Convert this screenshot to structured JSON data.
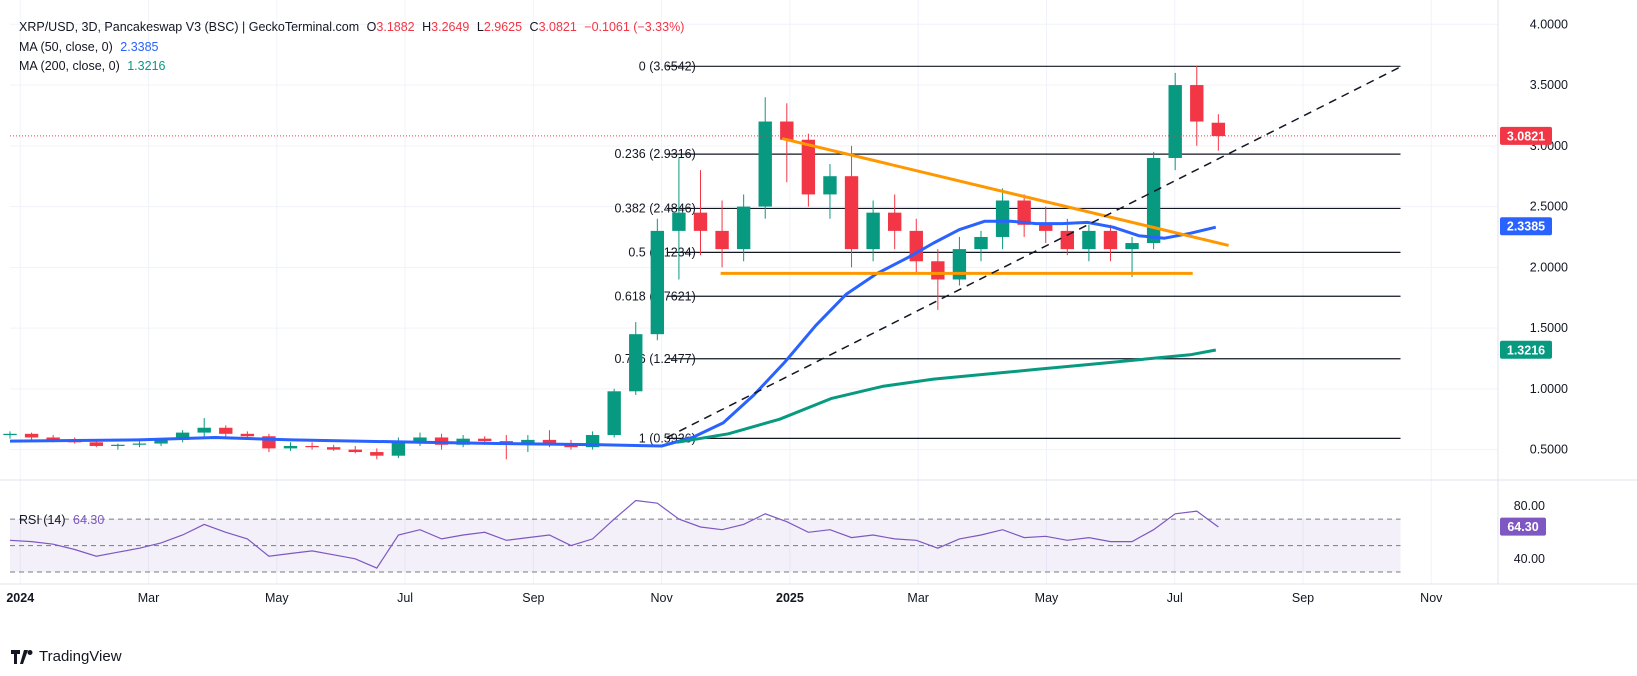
{
  "header": {
    "symbol": "XRP/USD, 3D, Pancakeswap V3 (BSC) | GeckoTerminal.com",
    "o_label": "O",
    "o_value": "3.1882",
    "h_label": "H",
    "h_value": "3.2649",
    "l_label": "L",
    "l_value": "2.9625",
    "c_label": "C",
    "c_value": "3.0821",
    "change": "−0.1061 (−3.33%)"
  },
  "indicators": {
    "ma50_label": "MA (50, close, 0)",
    "ma50_value": "2.3385",
    "ma200_label": "MA (200, close, 0)",
    "ma200_value": "1.3216",
    "rsi_label": "RSI (14)",
    "rsi_value": "64.30"
  },
  "colors": {
    "up": "#089981",
    "down": "#f23645",
    "ma50": "#2962ff",
    "ma200": "#089981",
    "rsi": "#7e57c2",
    "trend": "#ff9800",
    "fib": "#131722"
  },
  "brand": {
    "name": "TradingView"
  },
  "chart_data": {
    "type": "candlestick",
    "title": "XRP/USD, 3D, Pancakeswap V3 (BSC) | GeckoTerminal.com",
    "y_ticks": [
      "4.0000",
      "3.5000",
      "3.0000",
      "2.5000",
      "2.0000",
      "1.5000",
      "1.0000",
      "0.5000"
    ],
    "y_tick_values": [
      4.0,
      3.5,
      3.0,
      2.5,
      2.0,
      1.5,
      1.0,
      0.5
    ],
    "ylim": [
      0.25,
      4.2
    ],
    "x_ticks": [
      "2024",
      "Mar",
      "May",
      "Jul",
      "Sep",
      "Nov",
      "2025",
      "Mar",
      "May",
      "Jul",
      "Sep",
      "Nov"
    ],
    "x_tick_bold": [
      true,
      false,
      false,
      false,
      false,
      false,
      true,
      false,
      false,
      false,
      false,
      false
    ],
    "x_tick_pos": [
      0.7,
      3.2,
      5.7,
      8.2,
      10.7,
      13.2,
      15.7,
      18.2,
      20.7,
      23.2,
      25.7,
      28.2
    ],
    "x_range": [
      0.5,
      29.5
    ],
    "last_price": 3.0821,
    "last_price_label": "3.0821",
    "ma50_last": 2.3385,
    "ma50_last_label": "2.3385",
    "ma200_last": 1.3216,
    "ma200_last_label": "1.3216",
    "fib_levels": [
      {
        "ratio": "0",
        "price": 3.6542,
        "label": "0 (3.6542)"
      },
      {
        "ratio": "0.236",
        "price": 2.9316,
        "label": "0.236 (2.9316)"
      },
      {
        "ratio": "0.382",
        "price": 2.4846,
        "label": "0.382 (2.4846)"
      },
      {
        "ratio": "0.5",
        "price": 2.1234,
        "label": "0.5 (2.1234)"
      },
      {
        "ratio": "0.618",
        "price": 1.7621,
        "label": "0.618 (1.7621)"
      },
      {
        "ratio": "0.786",
        "price": 1.2477,
        "label": "0.786 (1.2477)"
      },
      {
        "ratio": "1",
        "price": 0.5926,
        "label": "1 (0.5926)"
      }
    ],
    "fib_x_range": [
      13.3,
      27.6
    ],
    "trendlines": [
      {
        "name": "descending-resistance",
        "style": "orange",
        "from": [
          15.55,
          3.06
        ],
        "to": [
          24.25,
          2.18
        ]
      },
      {
        "name": "horizontal-support",
        "style": "orange",
        "from": [
          14.35,
          1.95
        ],
        "to": [
          23.55,
          1.95
        ]
      },
      {
        "name": "ascending-trend",
        "style": "dashed",
        "from": [
          13.3,
          0.6
        ],
        "to": [
          27.6,
          3.65
        ]
      }
    ],
    "series": [
      {
        "name": "MA (50, close, 0)",
        "points": [
          [
            0.5,
            0.57
          ],
          [
            3,
            0.58
          ],
          [
            4.5,
            0.6
          ],
          [
            6,
            0.58
          ],
          [
            8.5,
            0.56
          ],
          [
            10,
            0.55
          ],
          [
            12,
            0.54
          ],
          [
            13.2,
            0.53
          ],
          [
            13.8,
            0.6
          ],
          [
            14.4,
            0.72
          ],
          [
            15,
            0.95
          ],
          [
            15.6,
            1.22
          ],
          [
            16.2,
            1.52
          ],
          [
            16.8,
            1.78
          ],
          [
            17.4,
            1.95
          ],
          [
            18,
            2.08
          ],
          [
            18.5,
            2.2
          ],
          [
            19,
            2.31
          ],
          [
            19.5,
            2.38
          ],
          [
            20,
            2.38
          ],
          [
            20.5,
            2.36
          ],
          [
            21,
            2.36
          ],
          [
            21.5,
            2.37
          ],
          [
            22,
            2.33
          ],
          [
            22.5,
            2.26
          ],
          [
            23,
            2.24
          ],
          [
            23.5,
            2.28
          ],
          [
            24,
            2.33
          ]
        ]
      },
      {
        "name": "MA (200, close, 0)",
        "points": [
          [
            13.5,
            0.56
          ],
          [
            14.5,
            0.63
          ],
          [
            15.5,
            0.75
          ],
          [
            16.5,
            0.92
          ],
          [
            17.5,
            1.02
          ],
          [
            18.5,
            1.08
          ],
          [
            19.5,
            1.12
          ],
          [
            20.5,
            1.16
          ],
          [
            21.5,
            1.2
          ],
          [
            22.5,
            1.24
          ],
          [
            23.5,
            1.28
          ],
          [
            24,
            1.32
          ]
        ]
      }
    ],
    "candles": [
      {
        "o": 0.62,
        "h": 0.65,
        "l": 0.59,
        "c": 0.63
      },
      {
        "o": 0.63,
        "h": 0.64,
        "l": 0.58,
        "c": 0.6
      },
      {
        "o": 0.6,
        "h": 0.62,
        "l": 0.56,
        "c": 0.58
      },
      {
        "o": 0.58,
        "h": 0.6,
        "l": 0.55,
        "c": 0.56
      },
      {
        "o": 0.56,
        "h": 0.58,
        "l": 0.52,
        "c": 0.53
      },
      {
        "o": 0.53,
        "h": 0.55,
        "l": 0.5,
        "c": 0.54
      },
      {
        "o": 0.54,
        "h": 0.57,
        "l": 0.52,
        "c": 0.55
      },
      {
        "o": 0.55,
        "h": 0.59,
        "l": 0.53,
        "c": 0.58
      },
      {
        "o": 0.58,
        "h": 0.66,
        "l": 0.56,
        "c": 0.64
      },
      {
        "o": 0.64,
        "h": 0.76,
        "l": 0.6,
        "c": 0.68
      },
      {
        "o": 0.68,
        "h": 0.7,
        "l": 0.6,
        "c": 0.63
      },
      {
        "o": 0.63,
        "h": 0.65,
        "l": 0.58,
        "c": 0.61
      },
      {
        "o": 0.61,
        "h": 0.63,
        "l": 0.48,
        "c": 0.51
      },
      {
        "o": 0.51,
        "h": 0.56,
        "l": 0.49,
        "c": 0.53
      },
      {
        "o": 0.53,
        "h": 0.56,
        "l": 0.5,
        "c": 0.52
      },
      {
        "o": 0.52,
        "h": 0.54,
        "l": 0.49,
        "c": 0.5
      },
      {
        "o": 0.5,
        "h": 0.53,
        "l": 0.47,
        "c": 0.48
      },
      {
        "o": 0.48,
        "h": 0.51,
        "l": 0.42,
        "c": 0.45
      },
      {
        "o": 0.45,
        "h": 0.6,
        "l": 0.43,
        "c": 0.57
      },
      {
        "o": 0.57,
        "h": 0.64,
        "l": 0.53,
        "c": 0.6
      },
      {
        "o": 0.6,
        "h": 0.63,
        "l": 0.5,
        "c": 0.54
      },
      {
        "o": 0.54,
        "h": 0.62,
        "l": 0.52,
        "c": 0.59
      },
      {
        "o": 0.59,
        "h": 0.61,
        "l": 0.54,
        "c": 0.57
      },
      {
        "o": 0.57,
        "h": 0.62,
        "l": 0.42,
        "c": 0.55
      },
      {
        "o": 0.55,
        "h": 0.62,
        "l": 0.48,
        "c": 0.58
      },
      {
        "o": 0.58,
        "h": 0.66,
        "l": 0.52,
        "c": 0.55
      },
      {
        "o": 0.55,
        "h": 0.58,
        "l": 0.5,
        "c": 0.52
      },
      {
        "o": 0.52,
        "h": 0.65,
        "l": 0.5,
        "c": 0.62
      },
      {
        "o": 0.62,
        "h": 1.0,
        "l": 0.6,
        "c": 0.98
      },
      {
        "o": 0.98,
        "h": 1.55,
        "l": 0.95,
        "c": 1.45
      },
      {
        "o": 1.45,
        "h": 2.4,
        "l": 1.4,
        "c": 2.3
      },
      {
        "o": 2.3,
        "h": 2.9,
        "l": 1.9,
        "c": 2.45
      },
      {
        "o": 2.45,
        "h": 2.8,
        "l": 2.1,
        "c": 2.3
      },
      {
        "o": 2.3,
        "h": 2.55,
        "l": 2.0,
        "c": 2.15
      },
      {
        "o": 2.15,
        "h": 2.6,
        "l": 2.05,
        "c": 2.5
      },
      {
        "o": 2.5,
        "h": 3.4,
        "l": 2.4,
        "c": 3.2
      },
      {
        "o": 3.2,
        "h": 3.35,
        "l": 2.7,
        "c": 3.05
      },
      {
        "o": 3.05,
        "h": 3.1,
        "l": 2.5,
        "c": 2.6
      },
      {
        "o": 2.6,
        "h": 2.85,
        "l": 2.4,
        "c": 2.75
      },
      {
        "o": 2.75,
        "h": 3.0,
        "l": 2.0,
        "c": 2.15
      },
      {
        "o": 2.15,
        "h": 2.55,
        "l": 2.05,
        "c": 2.45
      },
      {
        "o": 2.45,
        "h": 2.6,
        "l": 2.15,
        "c": 2.3
      },
      {
        "o": 2.3,
        "h": 2.4,
        "l": 1.95,
        "c": 2.05
      },
      {
        "o": 2.05,
        "h": 2.15,
        "l": 1.65,
        "c": 1.9
      },
      {
        "o": 1.9,
        "h": 2.25,
        "l": 1.85,
        "c": 2.15
      },
      {
        "o": 2.15,
        "h": 2.3,
        "l": 2.05,
        "c": 2.25
      },
      {
        "o": 2.25,
        "h": 2.65,
        "l": 2.15,
        "c": 2.55
      },
      {
        "o": 2.55,
        "h": 2.6,
        "l": 2.25,
        "c": 2.35
      },
      {
        "o": 2.35,
        "h": 2.5,
        "l": 2.2,
        "c": 2.3
      },
      {
        "o": 2.3,
        "h": 2.4,
        "l": 2.1,
        "c": 2.15
      },
      {
        "o": 2.15,
        "h": 2.35,
        "l": 2.05,
        "c": 2.3
      },
      {
        "o": 2.3,
        "h": 2.35,
        "l": 2.05,
        "c": 2.15
      },
      {
        "o": 2.15,
        "h": 2.25,
        "l": 1.92,
        "c": 2.2
      },
      {
        "o": 2.2,
        "h": 2.95,
        "l": 2.15,
        "c": 2.9
      },
      {
        "o": 2.9,
        "h": 3.6,
        "l": 2.8,
        "c": 3.5
      },
      {
        "o": 3.5,
        "h": 3.66,
        "l": 3.0,
        "c": 3.2
      },
      {
        "o": 3.19,
        "h": 3.26,
        "l": 2.96,
        "c": 3.08
      }
    ],
    "rsi": {
      "name": "RSI (14)",
      "value_label": "64.30",
      "y_ticks": [
        "80.00",
        "40.00"
      ],
      "y_tick_values": [
        80,
        40
      ],
      "ylim": [
        24,
        98
      ],
      "overbought": 70,
      "oversold": 30,
      "mid": 50,
      "last_label": "64.30",
      "last": 64.3,
      "values": [
        54,
        53,
        51,
        47,
        42,
        45,
        48,
        52,
        58,
        66,
        60,
        55,
        42,
        44,
        46,
        43,
        40,
        33,
        58,
        62,
        55,
        58,
        60,
        54,
        56,
        58,
        50,
        55,
        70,
        84,
        82,
        70,
        64,
        62,
        66,
        74,
        68,
        60,
        62,
        56,
        58,
        55,
        54,
        48,
        55,
        58,
        62,
        56,
        57,
        54,
        56,
        53,
        53,
        62,
        74,
        76,
        64
      ]
    }
  }
}
